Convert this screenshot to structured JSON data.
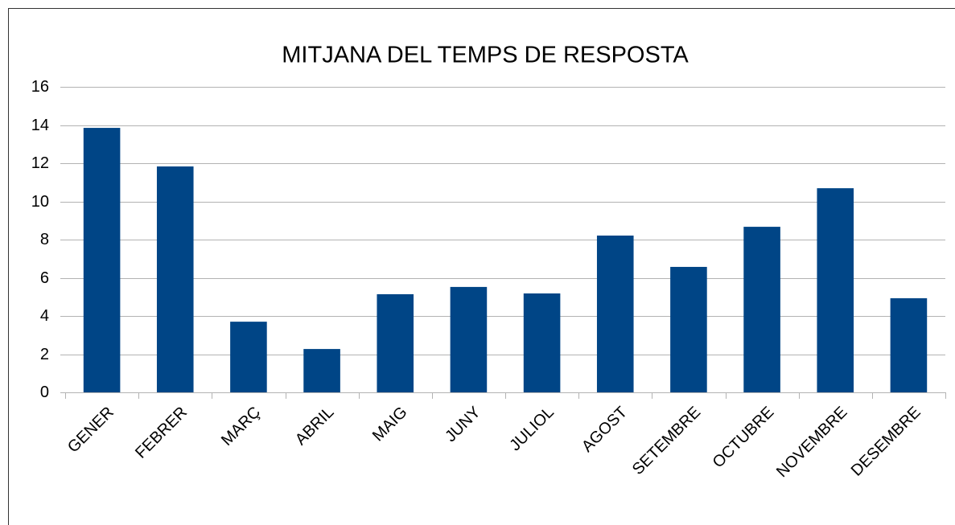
{
  "chart_data": {
    "type": "bar",
    "title": "MITJANA DEL TEMPS DE RESPOSTA",
    "categories": [
      "GENER",
      "FEBRER",
      "MARÇ",
      "ABRIL",
      "MAIG",
      "JUNY",
      "JULIOL",
      "AGOST",
      "SETEMBRE",
      "OCTUBRE",
      "NOVEMBRE",
      "DESEMBRE"
    ],
    "values": [
      13.85,
      11.83,
      3.7,
      2.27,
      5.14,
      5.52,
      5.18,
      8.21,
      6.57,
      8.67,
      10.69,
      4.93
    ],
    "color": "#004586",
    "ylim": [
      0,
      16
    ],
    "yticks": [
      0,
      2,
      4,
      6,
      8,
      10,
      12,
      14,
      16
    ],
    "grid": true
  }
}
